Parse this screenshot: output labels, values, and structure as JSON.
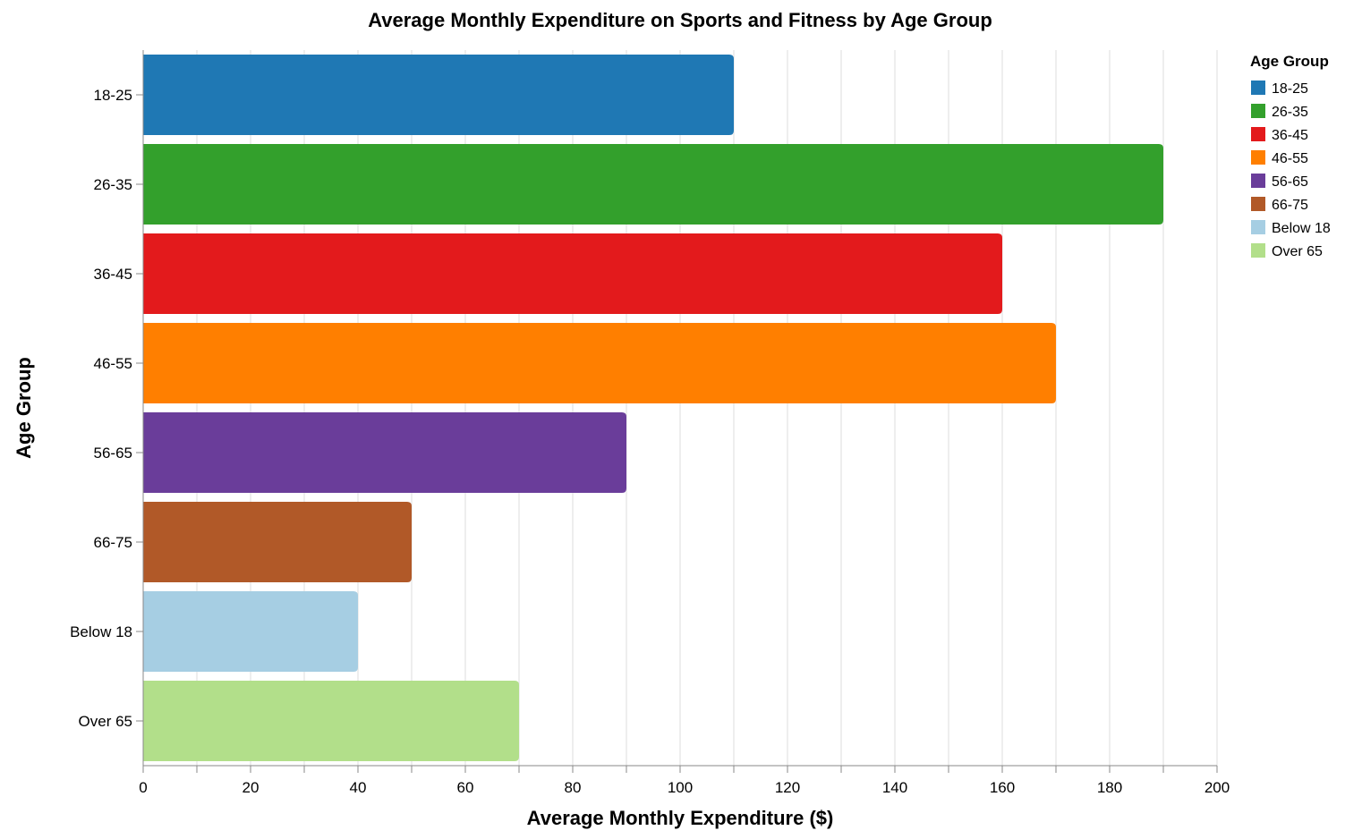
{
  "chart_data": {
    "type": "bar",
    "orientation": "horizontal",
    "title": "Average Monthly Expenditure on Sports and Fitness by Age Group",
    "xlabel": "Average Monthly Expenditure ($)",
    "ylabel": "Age Group",
    "xlim": [
      0,
      200
    ],
    "x_ticks": [
      "0",
      "20",
      "40",
      "60",
      "80",
      "100",
      "120",
      "140",
      "160",
      "180",
      "200"
    ],
    "grid": true,
    "categories": [
      "18-25",
      "26-35",
      "36-45",
      "46-55",
      "56-65",
      "66-75",
      "Below 18",
      "Over 65"
    ],
    "values": [
      110,
      190,
      160,
      170,
      90,
      50,
      40,
      70
    ],
    "colors": [
      "#1f78b4",
      "#33a02c",
      "#e31a1c",
      "#ff7f00",
      "#6a3d9a",
      "#b15928",
      "#a6cee3",
      "#b2df8a"
    ],
    "legend": {
      "title": "Age Group",
      "placement": "top-right",
      "entries": [
        "18-25",
        "26-35",
        "36-45",
        "46-55",
        "56-65",
        "66-75",
        "Below 18",
        "Over 65"
      ]
    }
  }
}
